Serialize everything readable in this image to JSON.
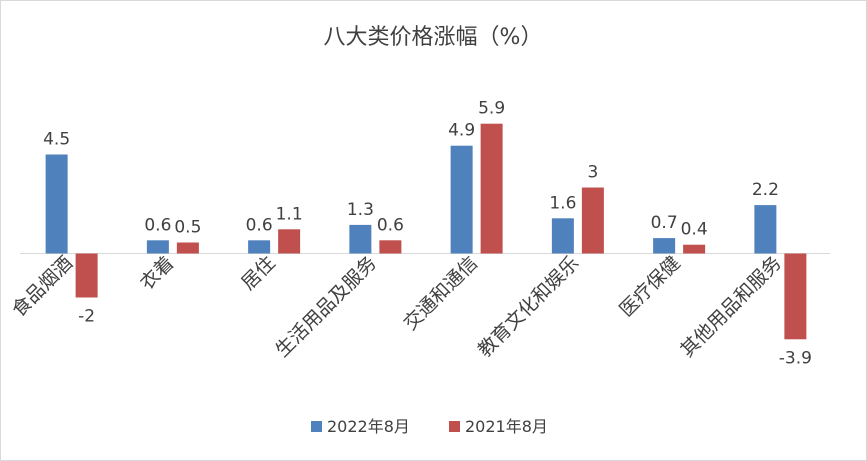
{
  "chart_data": {
    "type": "bar",
    "title": "八大类价格涨幅（%）",
    "categories": [
      "食品烟酒",
      "衣着",
      "居住",
      "生活用品及服务",
      "交通和通信",
      "教育文化和娱乐",
      "医疗保健",
      "其他用品和服务"
    ],
    "series": [
      {
        "name": "2022年8月",
        "color": "#4F81BD",
        "values": [
          4.5,
          0.6,
          0.6,
          1.3,
          4.9,
          1.6,
          0.7,
          2.2
        ]
      },
      {
        "name": "2021年8月",
        "color": "#C0504D",
        "values": [
          -2,
          0.5,
          1.1,
          0.6,
          5.9,
          3,
          0.4,
          -3.9
        ]
      }
    ],
    "data_labels": true,
    "legend": "bottom",
    "grid": false,
    "xlabel": "",
    "ylabel": ""
  }
}
